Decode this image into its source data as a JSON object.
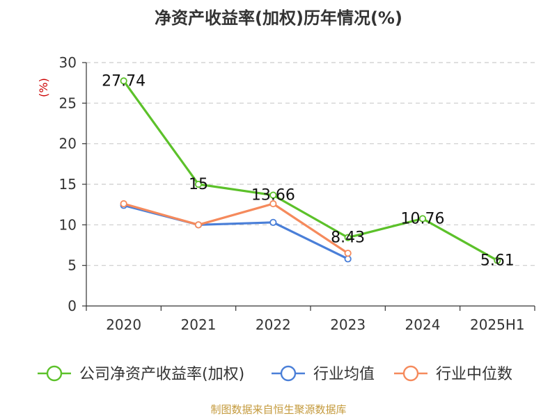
{
  "chart_data": {
    "type": "line",
    "title": "净资产收益率(加权)历年情况(%)",
    "ylabel": "(%)",
    "xlabel": "",
    "categories": [
      "2020",
      "2021",
      "2022",
      "2023",
      "2024",
      "2025H1"
    ],
    "ylim": [
      0,
      30
    ],
    "yticks": [
      "0",
      "5",
      "10",
      "15",
      "20",
      "25",
      "30"
    ],
    "grid": true,
    "legend_position": "bottom",
    "series": [
      {
        "name": "公司净资产收益率(加权)",
        "color": "#5cc12a",
        "values": [
          27.74,
          15,
          13.66,
          8.43,
          10.76,
          5.61
        ],
        "labels": [
          "27.74",
          "15",
          "13.66",
          "8.43",
          "10.76",
          "5.61"
        ]
      },
      {
        "name": "行业均值",
        "color": "#4a7fd8",
        "values": [
          12.4,
          10.0,
          10.3,
          5.8,
          null,
          null
        ]
      },
      {
        "name": "行业中位数",
        "color": "#f58a5c",
        "values": [
          12.6,
          10.0,
          12.6,
          6.5,
          null,
          null
        ]
      }
    ]
  },
  "source": "制图数据来自恒生聚源数据库"
}
